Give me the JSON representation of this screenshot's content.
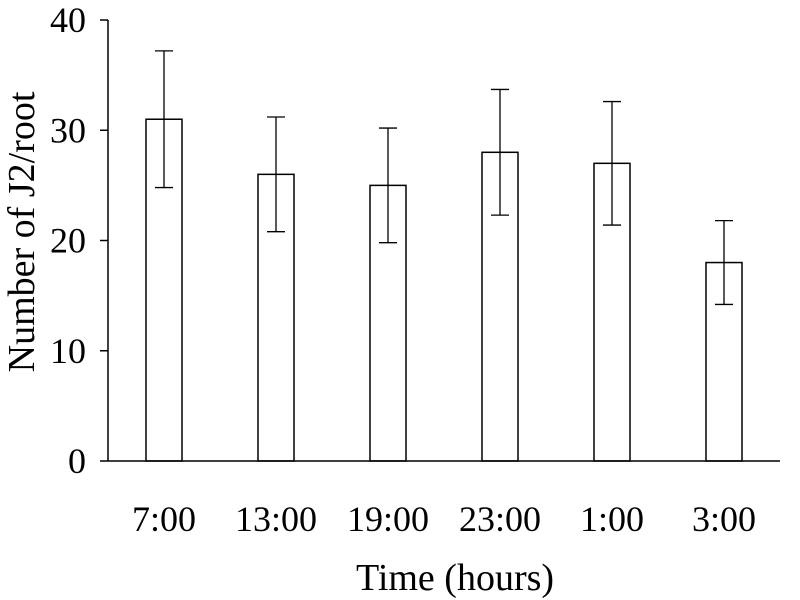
{
  "chart_data": {
    "type": "bar",
    "title": "",
    "xlabel": "Time (hours)",
    "ylabel": "Number of J2/root",
    "categories": [
      "7:00",
      "13:00",
      "19:00",
      "23:00",
      "1:00",
      "3:00"
    ],
    "values": [
      31,
      26,
      25,
      28,
      27,
      18
    ],
    "errors": [
      6.2,
      5.2,
      5.2,
      5.7,
      5.6,
      3.8
    ],
    "ylim": [
      0,
      40
    ],
    "yticks": [
      0,
      10,
      20,
      30,
      40
    ],
    "grid": false,
    "legend": "none",
    "colors": {
      "bar_fill": "#ffffff",
      "bar_stroke": "#000000",
      "axis": "#000000"
    }
  }
}
